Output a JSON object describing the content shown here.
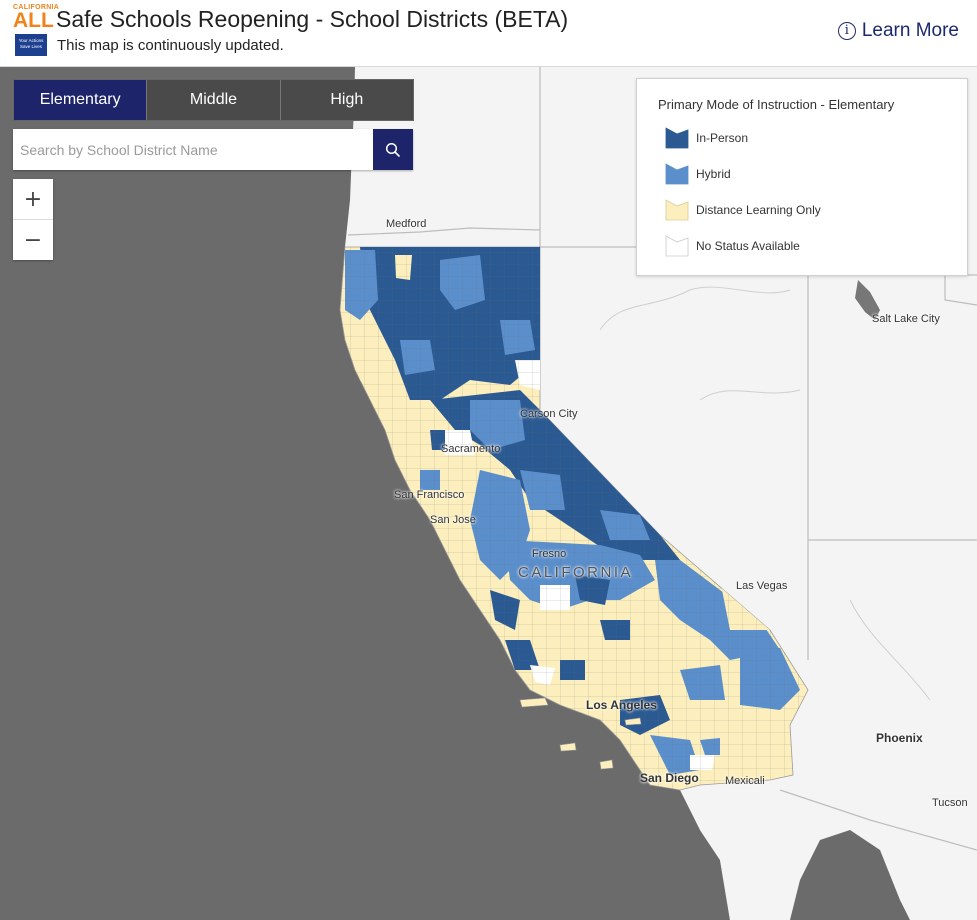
{
  "header": {
    "logo": {
      "top_text": "CALIFORNIA",
      "main_text": "ALL",
      "box_text": "Your Actions Save Lives"
    },
    "title": "Safe Schools Reopening - School Districts (BETA)",
    "subtitle": "This map is continuously updated.",
    "learn_more": {
      "icon": "info-icon",
      "label": "Learn More"
    }
  },
  "grade_tabs": [
    {
      "label": "Elementary",
      "active": true
    },
    {
      "label": "Middle",
      "active": false
    },
    {
      "label": "High",
      "active": false
    }
  ],
  "search": {
    "placeholder": "Search by School District Name",
    "value": "",
    "button_icon": "search-icon"
  },
  "zoom": {
    "in_icon": "plus-icon",
    "out_icon": "minus-icon"
  },
  "legend": {
    "title": "Primary Mode of Instruction - Elementary",
    "items": [
      {
        "label": "In-Person",
        "color": "#2b5a93"
      },
      {
        "label": "Hybrid",
        "color": "#5b8fcc"
      },
      {
        "label": "Distance Learning Only",
        "color": "#fcefbd"
      },
      {
        "label": "No Status Available",
        "color": "#ffffff"
      }
    ]
  },
  "map": {
    "colors": {
      "ocean": "#6b6b6b",
      "land": "#f4f4f4",
      "border": "#bdbdbd",
      "lake": "#777777"
    },
    "place_labels": [
      "Medford",
      "Salt Lake City",
      "Carson City",
      "Sacramento",
      "San Francisco",
      "San Jose",
      "Fresno",
      "CALIFORNIA",
      "Las Vegas",
      "Los Angeles",
      "Phoenix",
      "San Diego",
      "Mexicali",
      "Tucson"
    ]
  }
}
